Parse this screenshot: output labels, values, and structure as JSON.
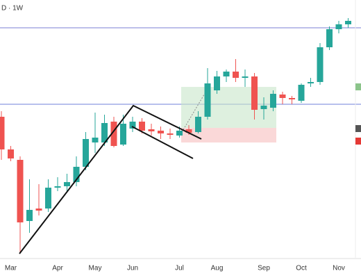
{
  "chart_data": {
    "type": "candlestick",
    "title": "D · 1W",
    "categories": [
      null,
      "Mar",
      null,
      null,
      null,
      null,
      "Apr",
      null,
      null,
      null,
      "May",
      null,
      null,
      null,
      "Jun",
      null,
      null,
      null,
      null,
      "Jul",
      null,
      null,
      null,
      "Aug",
      null,
      null,
      null,
      null,
      "Sep",
      null,
      null,
      null,
      "Oct",
      null,
      null,
      null,
      "Nov",
      null
    ],
    "open": [
      204,
      157,
      142,
      54,
      72,
      72,
      102,
      104,
      110,
      132,
      167,
      167,
      197,
      164,
      187,
      197,
      186,
      184,
      180,
      177,
      186,
      182,
      204,
      242,
      262,
      269,
      260,
      262,
      215,
      217,
      236,
      231,
      227,
      252,
      254,
      304,
      330,
      337
    ],
    "high": [
      212,
      162,
      147,
      114,
      107,
      114,
      117,
      122,
      147,
      182,
      210,
      207,
      204,
      207,
      204,
      202,
      194,
      190,
      187,
      190,
      192,
      212,
      274,
      270,
      272,
      287,
      272,
      267,
      232,
      242,
      240,
      234,
      252,
      260,
      310,
      334,
      342,
      346
    ],
    "low": [
      142,
      140,
      7,
      37,
      62,
      67,
      97,
      97,
      104,
      127,
      152,
      162,
      160,
      162,
      182,
      180,
      177,
      172,
      172,
      174,
      178,
      180,
      200,
      237,
      254,
      254,
      247,
      200,
      200,
      212,
      222,
      222,
      224,
      247,
      250,
      300,
      324,
      332
    ],
    "close": [
      157,
      144,
      52,
      70,
      69,
      102,
      104,
      110,
      132,
      172,
      174,
      195,
      162,
      194,
      197,
      184,
      183,
      180,
      178,
      184,
      181,
      204,
      252,
      262,
      269,
      260,
      262,
      214,
      220,
      237,
      231,
      229,
      250,
      254,
      304,
      330,
      337,
      342
    ],
    "up_color": "#26a69a",
    "down_color": "#ef5350",
    "ylim": [
      0,
      372
    ],
    "levels": [
      {
        "value": 332,
        "color": "#7b7fd4"
      },
      {
        "value": 222,
        "color": "#6f7fd8"
      }
    ]
  }
}
